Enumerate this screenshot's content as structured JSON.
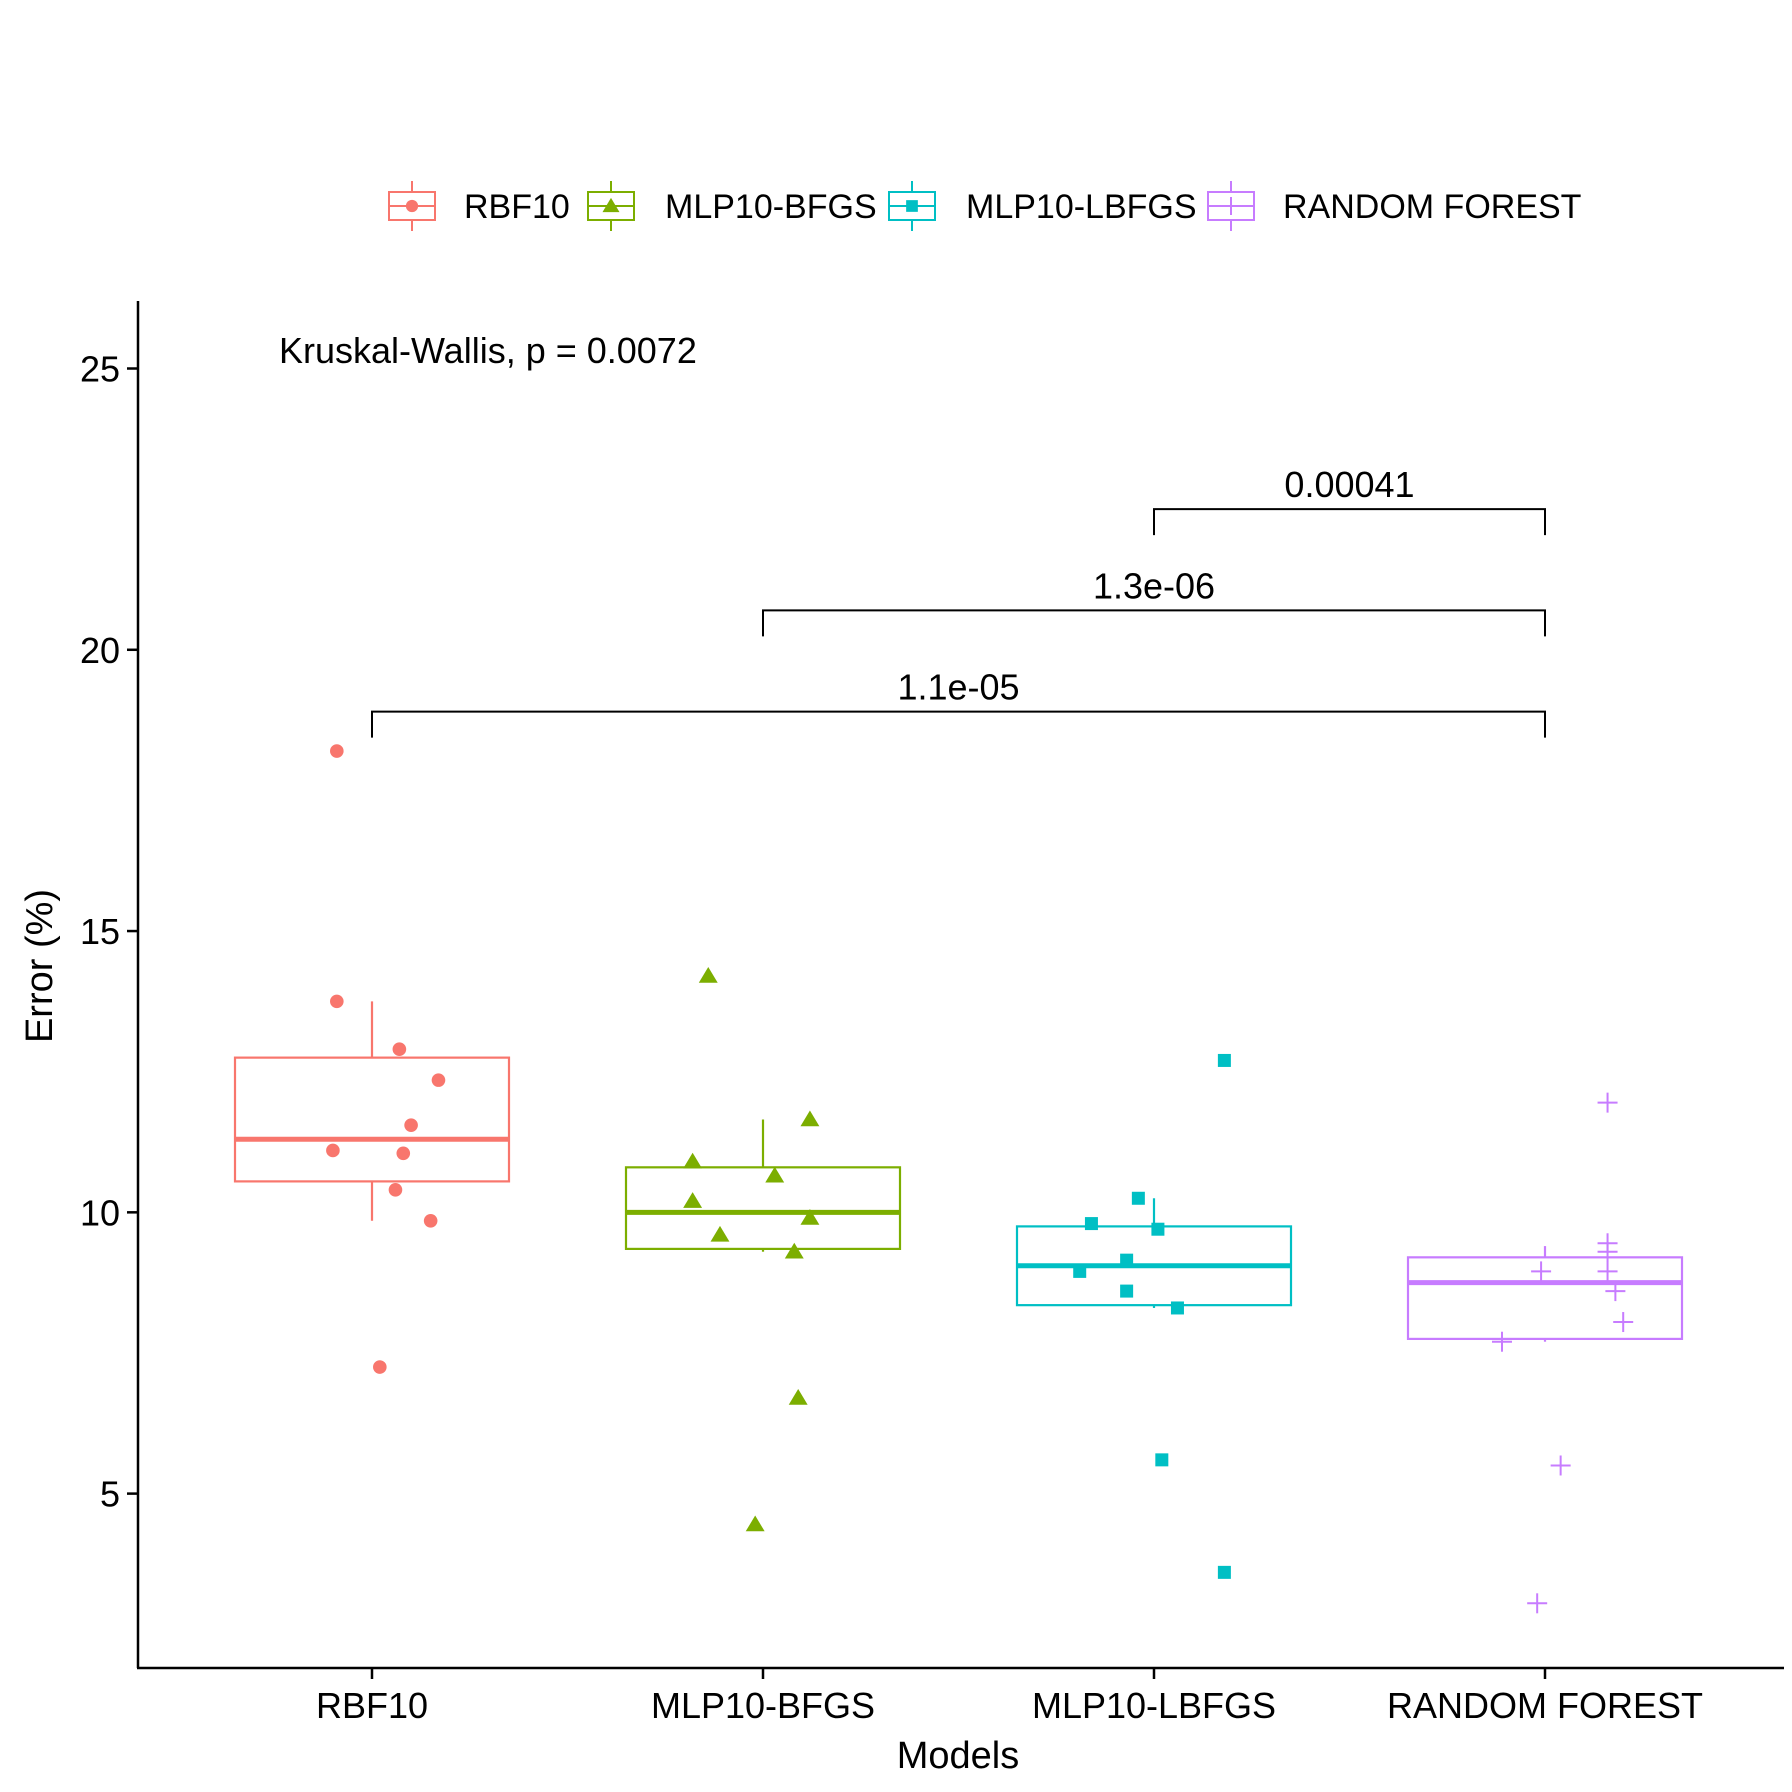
{
  "chart_data": {
    "type": "box",
    "xlabel": "Models",
    "ylabel": "Error (%)",
    "ylim": [
      1.9,
      26.2
    ],
    "yticks": [
      5,
      10,
      15,
      20,
      25
    ],
    "categories": [
      "RBF10",
      "MLP10-BFGS",
      "MLP10-LBFGS",
      "RANDOM FOREST"
    ],
    "legend": {
      "position": "top",
      "entries": [
        {
          "label": "RBF10",
          "color": "#F8766D",
          "marker": "circle"
        },
        {
          "label": "MLP10-BFGS",
          "color": "#7CAE00",
          "marker": "triangle"
        },
        {
          "label": "MLP10-LBFGS",
          "color": "#00BFC4",
          "marker": "square"
        },
        {
          "label": "RANDOM FOREST",
          "color": "#C77CFF",
          "marker": "plus"
        }
      ]
    },
    "series": [
      {
        "name": "RBF10",
        "color": "#F8766D",
        "marker": "circle",
        "box": {
          "whisker_low": 9.85,
          "q1": 10.55,
          "median": 11.3,
          "q3": 12.75,
          "whisker_high": 13.75
        },
        "points": [
          {
            "dx": -0.09,
            "y": 18.2
          },
          {
            "dx": -0.09,
            "y": 13.75
          },
          {
            "dx": 0.07,
            "y": 12.9
          },
          {
            "dx": 0.17,
            "y": 12.35
          },
          {
            "dx": 0.1,
            "y": 11.55
          },
          {
            "dx": -0.1,
            "y": 11.1
          },
          {
            "dx": 0.08,
            "y": 11.05
          },
          {
            "dx": 0.06,
            "y": 10.4
          },
          {
            "dx": 0.15,
            "y": 9.85
          },
          {
            "dx": 0.02,
            "y": 7.25
          }
        ]
      },
      {
        "name": "MLP10-BFGS",
        "color": "#7CAE00",
        "marker": "triangle",
        "box": {
          "whisker_low": 9.3,
          "q1": 9.35,
          "median": 10.0,
          "q3": 10.8,
          "whisker_high": 11.65
        },
        "points": [
          {
            "dx": -0.14,
            "y": 14.2
          },
          {
            "dx": 0.12,
            "y": 11.65
          },
          {
            "dx": -0.18,
            "y": 10.9
          },
          {
            "dx": 0.03,
            "y": 10.65
          },
          {
            "dx": -0.18,
            "y": 10.2
          },
          {
            "dx": 0.12,
            "y": 9.9
          },
          {
            "dx": -0.11,
            "y": 9.6
          },
          {
            "dx": 0.08,
            "y": 9.3
          },
          {
            "dx": 0.09,
            "y": 6.7
          },
          {
            "dx": -0.02,
            "y": 4.45
          }
        ]
      },
      {
        "name": "MLP10-LBFGS",
        "color": "#00BFC4",
        "marker": "square",
        "box": {
          "whisker_low": 8.3,
          "q1": 8.35,
          "median": 9.05,
          "q3": 9.75,
          "whisker_high": 10.25
        },
        "points": [
          {
            "dx": 0.18,
            "y": 12.7
          },
          {
            "dx": -0.04,
            "y": 10.25
          },
          {
            "dx": -0.16,
            "y": 9.8
          },
          {
            "dx": 0.01,
            "y": 9.7
          },
          {
            "dx": -0.07,
            "y": 9.15
          },
          {
            "dx": -0.19,
            "y": 8.95
          },
          {
            "dx": -0.07,
            "y": 8.6
          },
          {
            "dx": 0.06,
            "y": 8.3
          },
          {
            "dx": 0.02,
            "y": 5.6
          },
          {
            "dx": 0.18,
            "y": 3.6
          }
        ]
      },
      {
        "name": "RANDOM FOREST",
        "color": "#C77CFF",
        "marker": "plus",
        "box": {
          "whisker_low": 7.7,
          "q1": 7.75,
          "median": 8.75,
          "q3": 9.2,
          "whisker_high": 9.4
        },
        "points": [
          {
            "dx": 0.16,
            "y": 11.95
          },
          {
            "dx": 0.16,
            "y": 9.45
          },
          {
            "dx": 0.16,
            "y": 9.3
          },
          {
            "dx": -0.01,
            "y": 8.95
          },
          {
            "dx": 0.16,
            "y": 8.95
          },
          {
            "dx": 0.18,
            "y": 8.6
          },
          {
            "dx": 0.2,
            "y": 8.05
          },
          {
            "dx": -0.11,
            "y": 7.7
          },
          {
            "dx": 0.04,
            "y": 5.5
          },
          {
            "dx": -0.02,
            "y": 3.05
          }
        ]
      }
    ],
    "annotations": [
      {
        "text": "Kruskal-Wallis, p = 0.0072",
        "position": "top-left"
      }
    ],
    "comparisons": [
      {
        "from": "MLP10-LBFGS",
        "to": "RANDOM FOREST",
        "label": "0.00041",
        "y": 22.5
      },
      {
        "from": "MLP10-BFGS",
        "to": "RANDOM FOREST",
        "label": "1.3e-06",
        "y": 20.7
      },
      {
        "from": "RBF10",
        "to": "RANDOM FOREST",
        "label": "1.1e-05",
        "y": 18.9
      }
    ]
  }
}
